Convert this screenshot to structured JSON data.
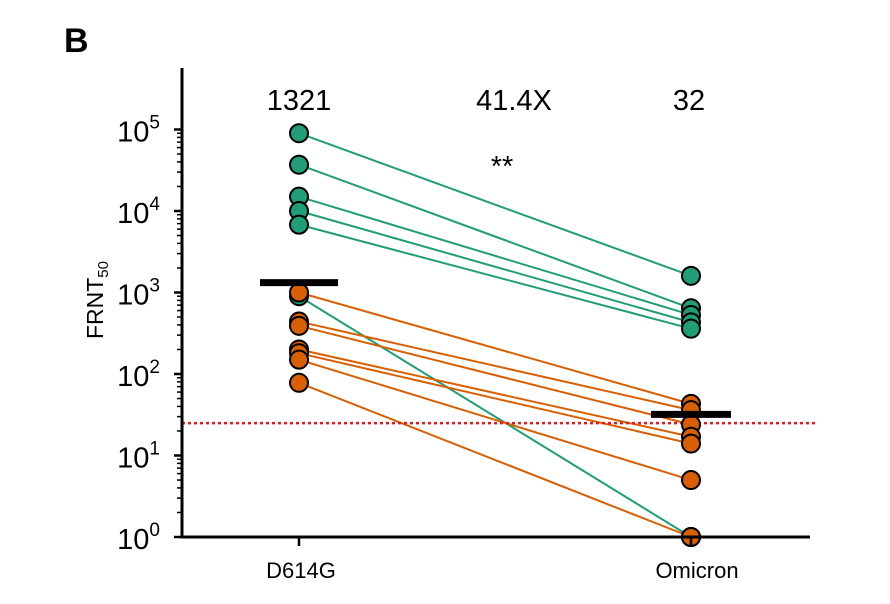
{
  "panel_label": "B",
  "chart_data": {
    "type": "scatter",
    "subtype": "paired-log-scatter",
    "categories": [
      "D614G",
      "Omicron"
    ],
    "ylabel_main": "FRNT",
    "ylabel_sub": "50",
    "yscale": "log10",
    "ylim": [
      1,
      400000
    ],
    "yticks": [
      {
        "value": 1,
        "base": "10",
        "exp": "0"
      },
      {
        "value": 10,
        "base": "10",
        "exp": "1"
      },
      {
        "value": 100,
        "base": "10",
        "exp": "2"
      },
      {
        "value": 1000,
        "base": "10",
        "exp": "3"
      },
      {
        "value": 10000,
        "base": "10",
        "exp": "4"
      },
      {
        "value": 100000,
        "base": "10",
        "exp": "5"
      }
    ],
    "geomean_labels": [
      "1321",
      "32"
    ],
    "fold_change": "41.4X",
    "significance": "**",
    "geomeans": [
      1321,
      32
    ],
    "limit_of_detection": 25,
    "colors": {
      "group_a": "#1f9e77",
      "group_b": "#d95f02",
      "fold": "#e41a1c",
      "lod": "#e41a1c",
      "axis": "#000000"
    },
    "pairs": [
      {
        "group": "a",
        "d614g": 90000,
        "omicron": 1600
      },
      {
        "group": "a",
        "d614g": 37000,
        "omicron": 640
      },
      {
        "group": "a",
        "d614g": 15000,
        "omicron": 530
      },
      {
        "group": "a",
        "d614g": 10000,
        "omicron": 430
      },
      {
        "group": "a",
        "d614g": 6800,
        "omicron": 360
      },
      {
        "group": "a",
        "d614g": 900,
        "omicron": 1
      },
      {
        "group": "b",
        "d614g": 1000,
        "omicron": 43
      },
      {
        "group": "b",
        "d614g": 440,
        "omicron": 36
      },
      {
        "group": "b",
        "d614g": 390,
        "omicron": 24
      },
      {
        "group": "b",
        "d614g": 200,
        "omicron": 17
      },
      {
        "group": "b",
        "d614g": 180,
        "omicron": 14
      },
      {
        "group": "b",
        "d614g": 150,
        "omicron": 5
      },
      {
        "group": "b",
        "d614g": 78,
        "omicron": 1
      }
    ]
  }
}
